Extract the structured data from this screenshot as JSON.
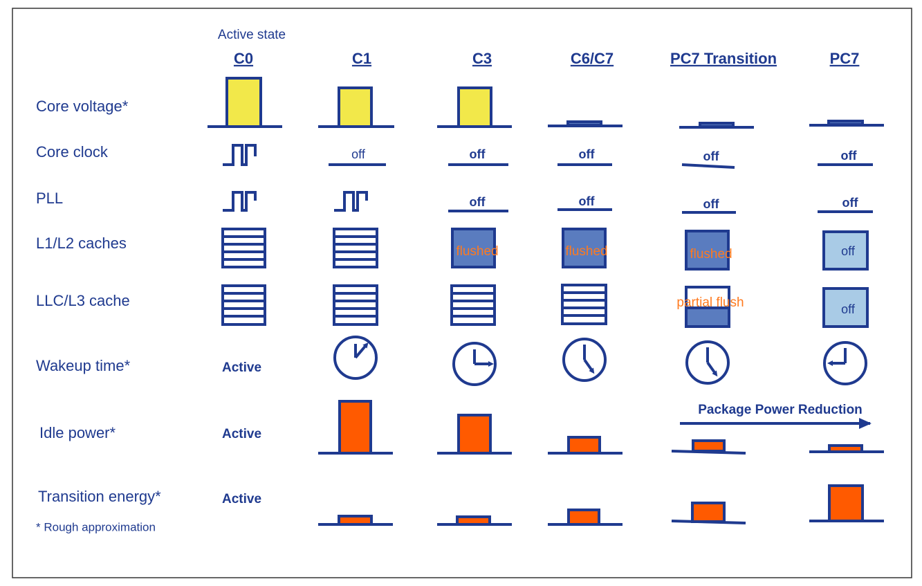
{
  "header": {
    "note": "Active state",
    "columns": [
      "C0",
      "C1",
      "C3",
      "C6/C7",
      "PC7 Transition",
      "PC7"
    ]
  },
  "rows": [
    {
      "label": "Core voltage*"
    },
    {
      "label": "Core clock",
      "texts": [
        "off",
        "off",
        "off",
        "off",
        "off"
      ]
    },
    {
      "label": "PLL",
      "texts": [
        "off",
        "off",
        "off",
        "off"
      ]
    },
    {
      "label": "L1/L2 caches",
      "texts": [
        "flushed",
        "flushed",
        "flushed",
        "off"
      ]
    },
    {
      "label": "LLC/L3 cache",
      "texts": [
        "partial flush",
        "off"
      ]
    },
    {
      "label": "Wakeup time*",
      "texts": [
        "Active"
      ]
    },
    {
      "label": "Idle power*",
      "texts": [
        "Active"
      ]
    },
    {
      "label": "Transition energy*",
      "texts": [
        "Active"
      ]
    }
  ],
  "arrow_label": "Package Power Reduction",
  "footnote": "* Rough approximation"
}
